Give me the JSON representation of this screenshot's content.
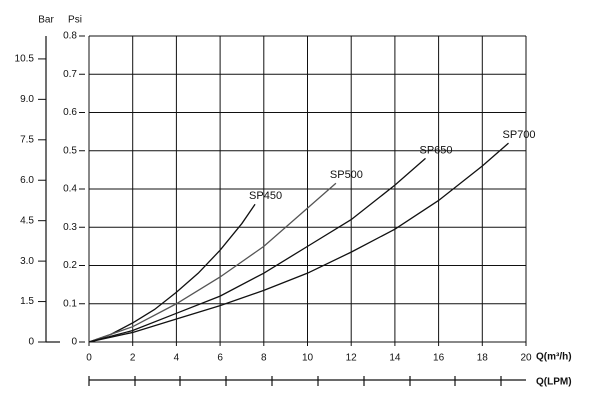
{
  "chart_data": {
    "type": "line",
    "y_label": "Psi",
    "y2_label": "Bar",
    "x_label": "Q(m³/h)",
    "x2_label": "Q(LPM)",
    "xlim": [
      0,
      20
    ],
    "xticks": [
      0,
      2,
      4,
      6,
      8,
      10,
      12,
      14,
      16,
      18,
      20
    ],
    "ylim": [
      0,
      0.8
    ],
    "yticks": [
      0,
      0.1,
      0.2,
      0.3,
      0.4,
      0.5,
      0.6,
      0.7,
      0.8
    ],
    "y2lim": [
      0,
      11.35
    ],
    "y2ticks": [
      0,
      1.5,
      {
        "value": 3,
        "label": "3.0"
      },
      4.5,
      {
        "value": 6,
        "label": "6.0"
      },
      7.5,
      {
        "value": 9,
        "label": "9.0"
      },
      10.5
    ],
    "grid": true,
    "series": [
      {
        "name": "SP450",
        "color": "#111111",
        "x": [
          0,
          1,
          2,
          3,
          4,
          5,
          6,
          7,
          7.6
        ],
        "values": [
          0,
          0.02,
          0.05,
          0.085,
          0.13,
          0.18,
          0.24,
          0.31,
          0.36
        ]
      },
      {
        "name": "SP500",
        "color": "#555555",
        "x": [
          0,
          2,
          4,
          6,
          8,
          10,
          11.3
        ],
        "values": [
          0,
          0.04,
          0.1,
          0.17,
          0.25,
          0.35,
          0.415
        ]
      },
      {
        "name": "SP650",
        "color": "#111111",
        "x": [
          0,
          2,
          4,
          6,
          8,
          10,
          12,
          14,
          15.4
        ],
        "values": [
          0,
          0.03,
          0.075,
          0.12,
          0.18,
          0.25,
          0.32,
          0.41,
          0.48
        ]
      },
      {
        "name": "SP700",
        "color": "#111111",
        "x": [
          0,
          2,
          4,
          6,
          8,
          10,
          12,
          14,
          16,
          18,
          19.2
        ],
        "values": [
          0,
          0.025,
          0.06,
          0.095,
          0.135,
          0.18,
          0.235,
          0.295,
          0.37,
          0.46,
          0.52
        ]
      }
    ]
  }
}
